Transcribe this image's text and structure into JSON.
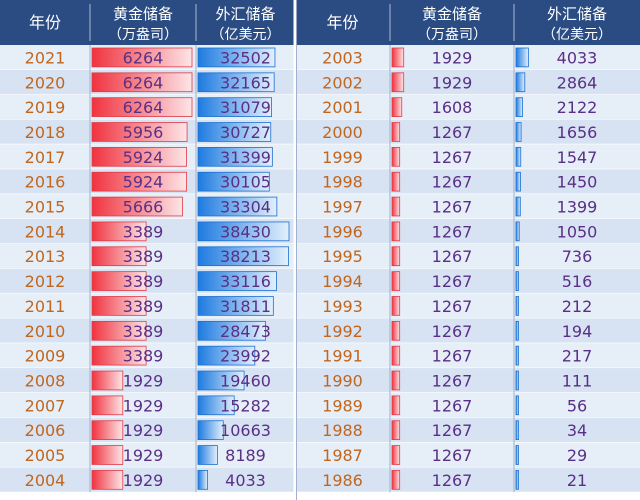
{
  "header": {
    "year": "年份",
    "gold_line1": "黄金储备",
    "gold_line2": "（万盎司）",
    "forex_line1": "外汇储备",
    "forex_line2": "（亿美元）"
  },
  "colors": {
    "header_bg": "#2b4c82",
    "header_text": "#ffffff",
    "row_bg_light": "#e6eef8",
    "row_bg_alt": "#d7e3f3",
    "divider": "#9fb2cc",
    "year_text": "#c0661e",
    "value_text": "#5a2f86",
    "gold_bar_strong": "#f0333f",
    "gold_bar_light": "#fde5e7",
    "forex_bar_strong": "#1e7be0",
    "forex_bar_light": "#e3f0fc"
  },
  "chart_data": {
    "type": "table",
    "columns": [
      "年份",
      "黄金储备（万盎司）",
      "外汇储备（亿美元）"
    ],
    "bar_max": {
      "gold": 6264,
      "forex": 38430
    },
    "left_table": [
      {
        "year": "2021",
        "gold": 6264,
        "forex": 32502
      },
      {
        "year": "2020",
        "gold": 6264,
        "forex": 32165
      },
      {
        "year": "2019",
        "gold": 6264,
        "forex": 31079
      },
      {
        "year": "2018",
        "gold": 5956,
        "forex": 30727
      },
      {
        "year": "2017",
        "gold": 5924,
        "forex": 31399
      },
      {
        "year": "2016",
        "gold": 5924,
        "forex": 30105
      },
      {
        "year": "2015",
        "gold": 5666,
        "forex": 33304
      },
      {
        "year": "2014",
        "gold": 3389,
        "forex": 38430
      },
      {
        "year": "2013",
        "gold": 3389,
        "forex": 38213
      },
      {
        "year": "2012",
        "gold": 3389,
        "forex": 33116
      },
      {
        "year": "2011",
        "gold": 3389,
        "forex": 31811
      },
      {
        "year": "2010",
        "gold": 3389,
        "forex": 28473
      },
      {
        "year": "2009",
        "gold": 3389,
        "forex": 23992
      },
      {
        "year": "2008",
        "gold": 1929,
        "forex": 19460
      },
      {
        "year": "2007",
        "gold": 1929,
        "forex": 15282
      },
      {
        "year": "2006",
        "gold": 1929,
        "forex": 10663
      },
      {
        "year": "2005",
        "gold": 1929,
        "forex": 8189
      },
      {
        "year": "2004",
        "gold": 1929,
        "forex": 4033
      }
    ],
    "right_table": [
      {
        "year": "2003",
        "gold": 1929,
        "forex": 4033
      },
      {
        "year": "2002",
        "gold": 1929,
        "forex": 2864
      },
      {
        "year": "2001",
        "gold": 1608,
        "forex": 2122
      },
      {
        "year": "2000",
        "gold": 1267,
        "forex": 1656
      },
      {
        "year": "1999",
        "gold": 1267,
        "forex": 1547
      },
      {
        "year": "1998",
        "gold": 1267,
        "forex": 1450
      },
      {
        "year": "1997",
        "gold": 1267,
        "forex": 1399
      },
      {
        "year": "1996",
        "gold": 1267,
        "forex": 1050
      },
      {
        "year": "1995",
        "gold": 1267,
        "forex": 736
      },
      {
        "year": "1994",
        "gold": 1267,
        "forex": 516
      },
      {
        "year": "1993",
        "gold": 1267,
        "forex": 212
      },
      {
        "year": "1992",
        "gold": 1267,
        "forex": 194
      },
      {
        "year": "1991",
        "gold": 1267,
        "forex": 217
      },
      {
        "year": "1990",
        "gold": 1267,
        "forex": 111
      },
      {
        "year": "1989",
        "gold": 1267,
        "forex": 56
      },
      {
        "year": "1988",
        "gold": 1267,
        "forex": 34
      },
      {
        "year": "1987",
        "gold": 1267,
        "forex": 29
      },
      {
        "year": "1986",
        "gold": 1267,
        "forex": 21
      }
    ]
  }
}
